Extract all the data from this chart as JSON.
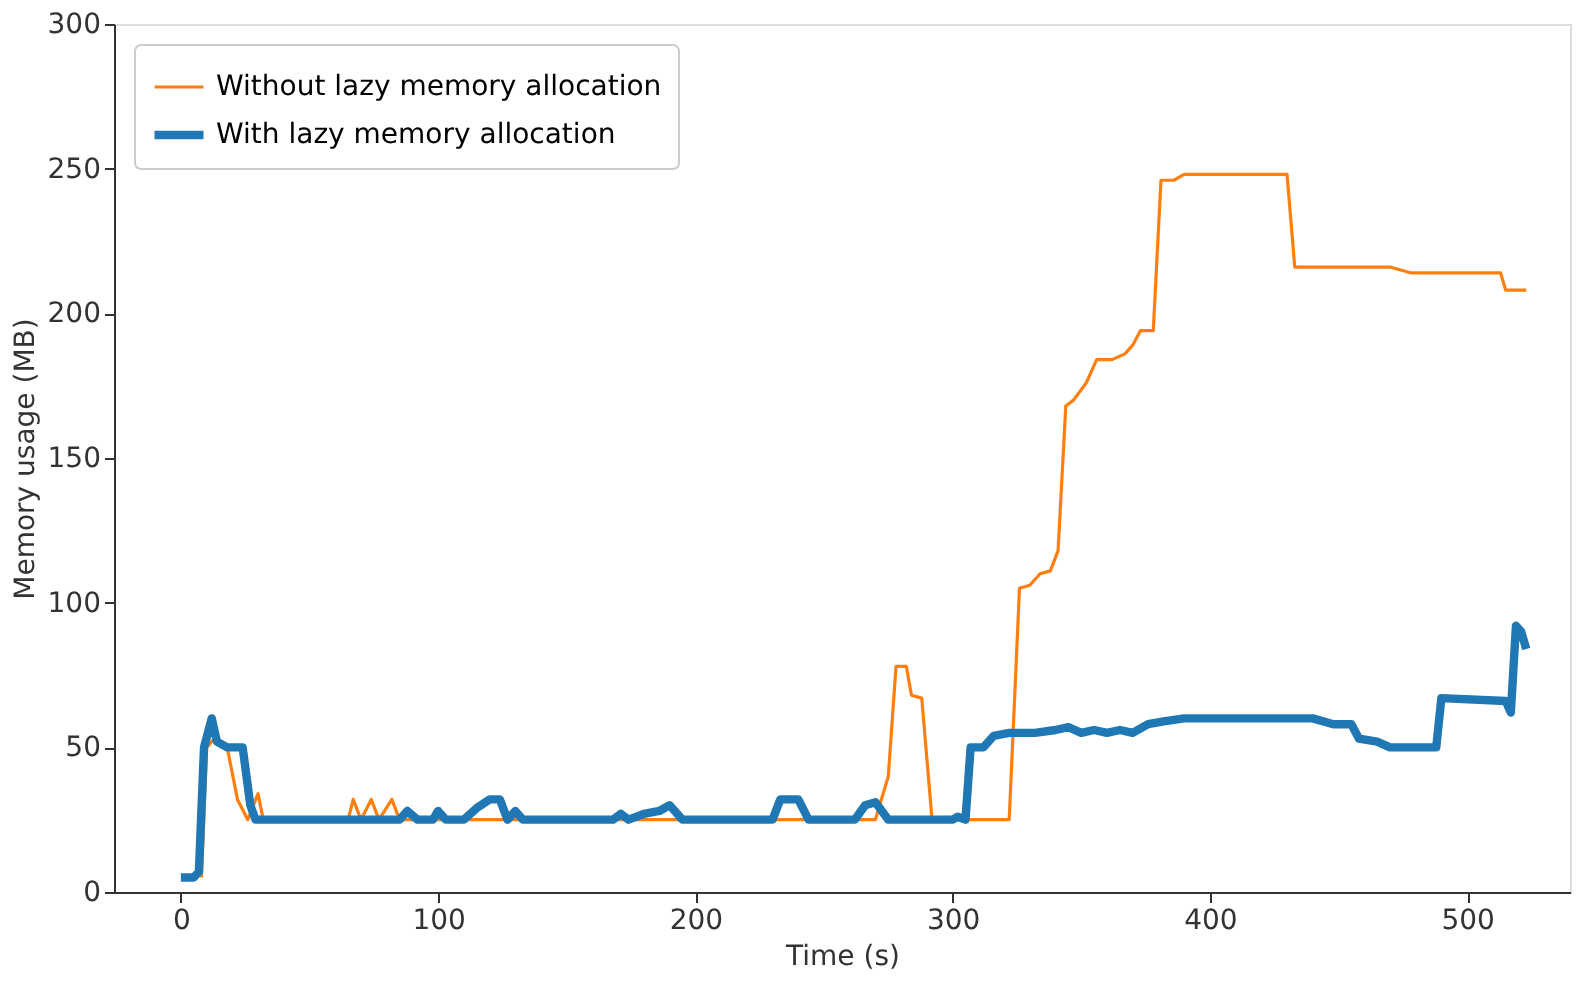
{
  "chart_data": {
    "type": "line",
    "xlabel": "Time (s)",
    "ylabel": "Memory usage (MB)",
    "xlim": [
      -26,
      540
    ],
    "ylim": [
      0,
      300
    ],
    "xticks": [
      0,
      100,
      200,
      300,
      400,
      500
    ],
    "yticks": [
      0,
      50,
      100,
      150,
      200,
      250,
      300
    ],
    "grid": false,
    "legend": "top left",
    "marker": "none",
    "line_style": "solid",
    "series": [
      {
        "name": "Without lazy memory allocation",
        "color": "#ff7f0e",
        "x": [
          8,
          10,
          13,
          18,
          22,
          26,
          30,
          32,
          65,
          67,
          70,
          74,
          77,
          82,
          85,
          270,
          275,
          278,
          282,
          284,
          288,
          292,
          322,
          326,
          330,
          334,
          338,
          341,
          344,
          347,
          352,
          356,
          362,
          367,
          370,
          373,
          378,
          381,
          386,
          390,
          430,
          433,
          470,
          478,
          513,
          515,
          523
        ],
        "values": [
          5,
          50,
          53,
          50,
          32,
          25,
          34,
          25,
          25,
          32,
          25,
          32,
          25,
          32,
          25,
          25,
          40,
          78,
          78,
          68,
          67,
          25,
          25,
          105,
          106,
          110,
          111,
          118,
          168,
          170,
          176,
          184,
          184,
          186,
          189,
          194,
          194,
          246,
          246,
          248,
          248,
          216,
          216,
          214,
          214,
          208,
          208
        ]
      },
      {
        "name": "With lazy memory allocation",
        "color": "#1f77b4",
        "x": [
          0,
          5,
          7,
          9,
          12,
          14,
          18,
          24,
          27,
          29,
          85,
          88,
          92,
          98,
          100,
          103,
          110,
          115,
          120,
          124,
          127,
          130,
          133,
          168,
          171,
          174,
          180,
          186,
          190,
          195,
          230,
          233,
          240,
          244,
          262,
          266,
          270,
          275,
          300,
          302,
          305,
          307,
          312,
          316,
          322,
          332,
          340,
          345,
          350,
          355,
          360,
          365,
          370,
          376,
          382,
          390,
          440,
          448,
          455,
          458,
          465,
          470,
          488,
          490,
          515,
          517,
          519,
          521,
          523
        ],
        "values": [
          5,
          5,
          7,
          50,
          60,
          52,
          50,
          50,
          30,
          25,
          25,
          28,
          25,
          25,
          28,
          25,
          25,
          29,
          32,
          32,
          25,
          28,
          25,
          25,
          27,
          25,
          27,
          28,
          30,
          25,
          25,
          32,
          32,
          25,
          25,
          30,
          31,
          25,
          25,
          26,
          25,
          50,
          50,
          54,
          55,
          55,
          56,
          57,
          55,
          56,
          55,
          56,
          55,
          58,
          59,
          60,
          60,
          58,
          58,
          53,
          52,
          50,
          50,
          67,
          66,
          62,
          92,
          90,
          84
        ]
      }
    ]
  }
}
